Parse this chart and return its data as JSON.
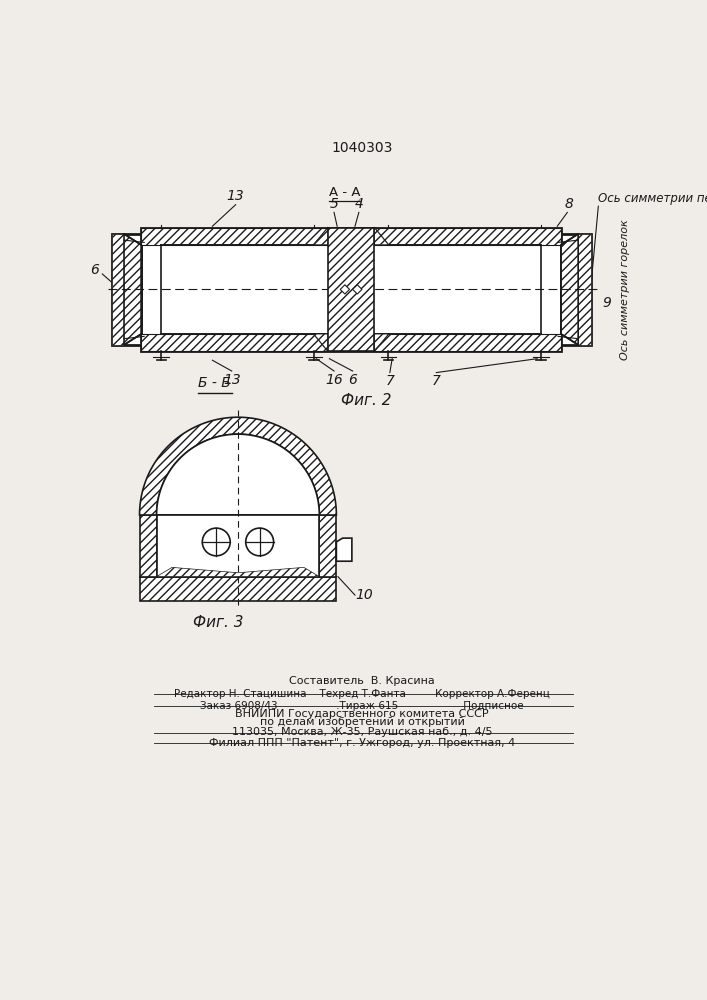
{
  "patent_number": "1040303",
  "bg_color": "#f0ede8",
  "line_color": "#1a1a1a",
  "fig2_label": "Фиг. 2",
  "fig3_label": "Фиг. 3",
  "section_aa_label": "А - А",
  "section_bb_label": "Б - Б",
  "axis_sym_pech": "Ось симметрии печи",
  "axis_sym_gorelok": "Ось симметрии горелок",
  "labels": {
    "13_top": "13",
    "5": "5",
    "4": "4",
    "8": "8",
    "6_left": "6",
    "13_bottom": "13",
    "16": "16",
    "6_mid": "6",
    "7_left": "7",
    "7_right": "7",
    "9": "9",
    "10": "10"
  },
  "footer_lines": [
    "Составитель  В. Красина",
    "Редактор Н. Стацишина    Техред Т.Фанта         Корректор А.Ференц",
    "Заказ 6908/43                  .Тираж 615                    Подписное",
    "ВНИИПИ Государственного комитета СССР",
    "по делам изобретений и открытий",
    "113035, Москва, Ж-35, Раушская наб., д. 4/5",
    "Филиал ППП \"Патент\", г. Ужгород, ул. Проектная, 4"
  ]
}
